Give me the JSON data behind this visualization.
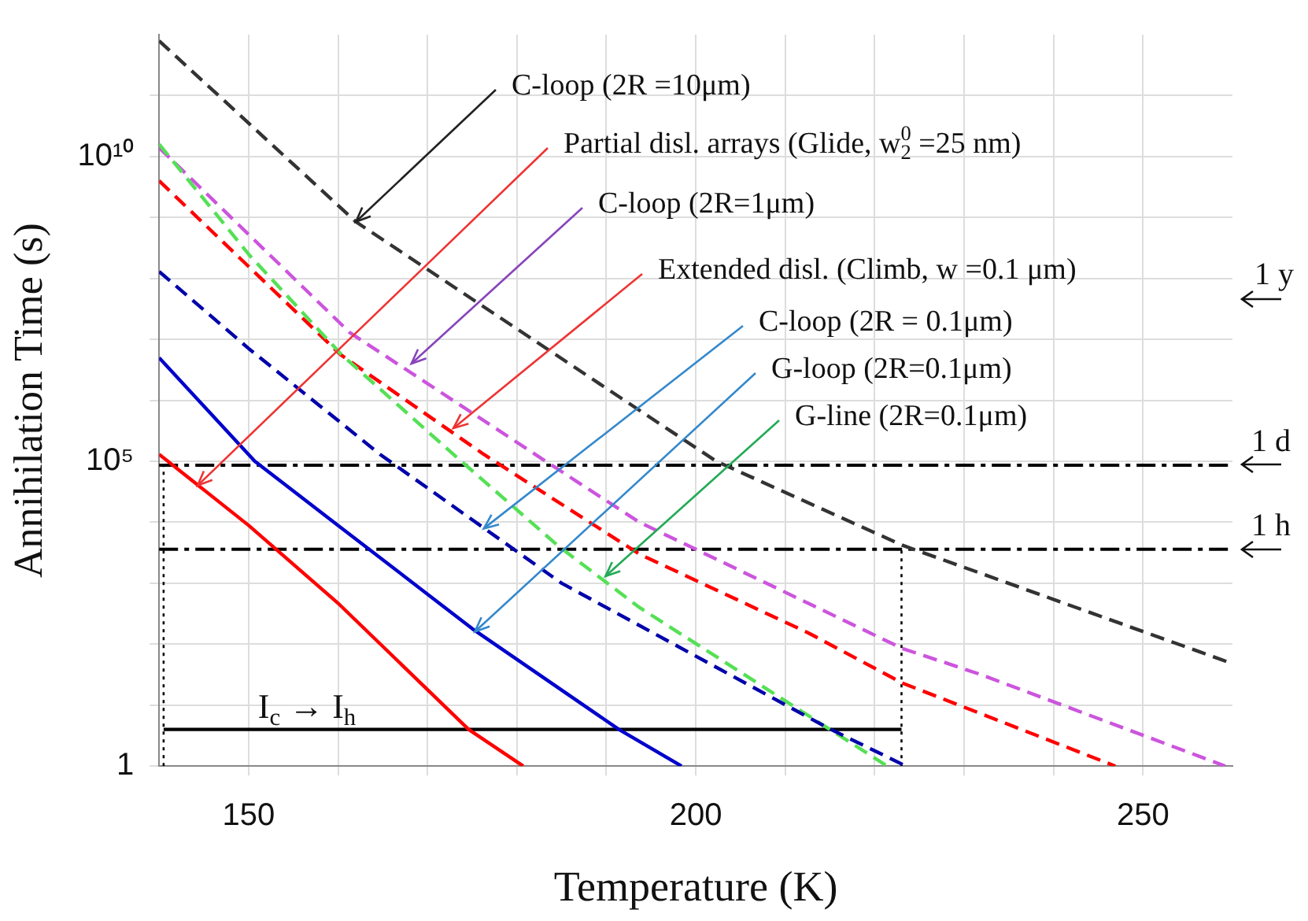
{
  "chart_data": {
    "type": "line",
    "xlabel": "Temperature (K)",
    "ylabel": "Annihilation Time (s)",
    "xlim": [
      140,
      260
    ],
    "xticks": [
      150,
      {
        "value": 160,
        "label": null
      },
      {
        "value": 170,
        "label": null
      },
      {
        "value": 180,
        "label": null
      },
      {
        "value": 190,
        "label": null
      },
      200,
      {
        "value": 210,
        "label": null
      },
      {
        "value": 220,
        "label": null
      },
      {
        "value": 230,
        "label": null
      },
      {
        "value": 240,
        "label": null
      },
      250
    ],
    "ylim": [
      1,
      1000000000000.0
    ],
    "yticks": [
      1,
      {
        "value": 10,
        "label": null
      },
      {
        "value": 100,
        "label": null
      },
      {
        "value": 1000,
        "label": null
      },
      {
        "value": 10000,
        "label": null
      },
      {
        "value": 100000,
        "label": "10⁵"
      },
      {
        "value": 1000000.0,
        "label": null
      },
      {
        "value": 10000000.0,
        "label": null
      },
      {
        "value": 100000000.0,
        "label": null
      },
      {
        "value": 1000000000.0,
        "label": null
      },
      {
        "value": 10000000000.0,
        "label": "10¹⁰"
      },
      {
        "value": 100000000000.0,
        "label": null
      }
    ],
    "log": "y",
    "grid": true,
    "legend": false,
    "marker": "none",
    "series": [
      {
        "color": "#ff0000",
        "line_style": "solid",
        "x": [
          140,
          150,
          160,
          174.6,
          180.7
        ],
        "values": [
          130000,
          8900,
          470,
          4,
          1
        ]
      },
      {
        "color": "#0000cc",
        "line_style": "solid",
        "x": [
          140,
          150.7,
          160,
          175,
          191.4,
          198.4
        ],
        "values": [
          5000000,
          100000,
          8900,
          180,
          4,
          1
        ]
      },
      {
        "color": "#0000aa",
        "line_style": "dashed",
        "x": [
          140,
          150,
          164.7,
          185,
          214.8,
          223.5
        ],
        "values": [
          130000000,
          7100000,
          130000,
          1000,
          4.2,
          1
        ]
      },
      {
        "color": "#55e055",
        "line_style": "dashed",
        "x": [
          140,
          150,
          160.4,
          172.9,
          184.7,
          193.7,
          221.4
        ],
        "values": [
          16000000000,
          250000000,
          5600000,
          130000,
          4000,
          400,
          1
        ]
      },
      {
        "color": "#ff0000",
        "line_style": "dashed",
        "x": [
          140,
          160.3,
          176.3,
          193.7,
          212.7,
          223.1,
          246.9
        ],
        "values": [
          4000000000,
          5600000,
          130000,
          3000,
          150,
          23,
          1
        ]
      },
      {
        "color": "#cc55dd",
        "line_style": "dashed",
        "x": [
          140,
          161.3,
          182.8,
          193.7,
          223.1,
          231.8,
          259.2
        ],
        "values": [
          14000000000,
          13000000,
          110000,
          10000,
          85,
          32,
          1
        ]
      },
      {
        "color": "#333333",
        "line_style": "dashed",
        "x": [
          140,
          162,
          197.1,
          202.3,
          223.1,
          249.1,
          260
        ],
        "values": [
          790000000000,
          850000000,
          320000,
          100000,
          4200,
          180,
          48
        ]
      },
      {
        "color": "#000000",
        "line_style": "dotted",
        "x": [
          140.5,
          140.5
        ],
        "values": [
          1,
          100000
        ]
      },
      {
        "color": "#000000",
        "line_style": "dotted",
        "x": [
          223,
          223
        ],
        "values": [
          1,
          3600
        ]
      },
      {
        "color": "#000000",
        "line_style": "solid",
        "x": [
          140.5,
          223
        ],
        "values": [
          4,
          4
        ]
      }
    ],
    "ref_lines": [
      {
        "axis": "y",
        "value": 86400,
        "label": "1 d",
        "line_style": "dashdot"
      },
      {
        "axis": "y",
        "value": 3600,
        "label": "1 h",
        "line_style": "dashdot"
      }
    ],
    "annotations": [
      {
        "text": "C-loop (2R =10μm)",
        "x": 162,
        "y": 850000000
      },
      {
        "text": "Partial disl. arrays (Glide, w$_{2}$$^{0}$ =25 nm)",
        "x": 144.3,
        "y": 40000
      },
      {
        "text": "C-loop (2R=1μm)",
        "x": 168.2,
        "y": 4000000
      },
      {
        "text": "Extended disl. (Climb, w =0.1 μm)",
        "x": 172.9,
        "y": 350000
      },
      {
        "text": "C-loop (2R = 0.1μm)",
        "x": 176.3,
        "y": 7900
      },
      {
        "text": "G-loop (2R=0.1μm)",
        "x": 175.3,
        "y": 160
      },
      {
        "text": "G-line (2R=0.1μm)",
        "x": 189.9,
        "y": 1300
      },
      "1 y",
      "I$_{c}$ → I$_{h}$"
    ]
  }
}
